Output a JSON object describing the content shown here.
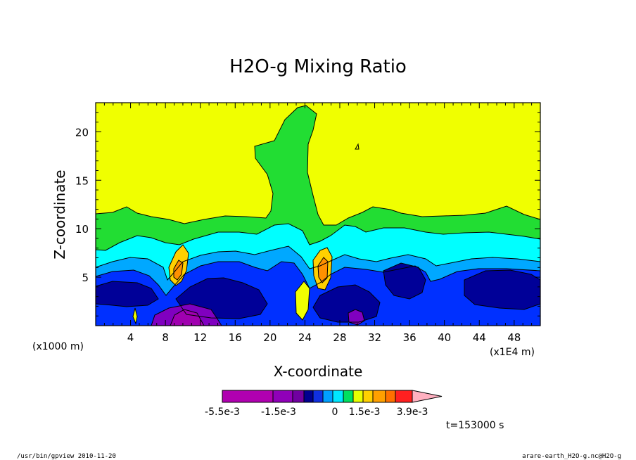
{
  "chart_data": {
    "type": "heatmap",
    "title": "H2O-g Mixing Ratio",
    "xlabel": "X-coordinate",
    "ylabel": "Z-coordinate",
    "x_unit_label": "(x1E4 m)",
    "y_unit_label": "(x1000 m)",
    "xlim": [
      0,
      51
    ],
    "ylim": [
      0,
      23
    ],
    "x_ticks": [
      "4",
      "8",
      "12",
      "16",
      "20",
      "24",
      "28",
      "32",
      "36",
      "40",
      "44",
      "48"
    ],
    "y_ticks": [
      "5",
      "10",
      "15",
      "20"
    ],
    "time_label": "t=153000 s",
    "colorbar": {
      "labels": [
        "-5.5e-3",
        "-1.5e-3",
        "0",
        "1.5e-3",
        "3.9e-3"
      ],
      "colors": [
        "#b000b0",
        "#9000b8",
        "#7000a0",
        "#000090",
        "#1030e0",
        "#00a0ff",
        "#00e8ff",
        "#00e060",
        "#e8ff00",
        "#ffd000",
        "#ffa000",
        "#ff7000",
        "#ff2020",
        "#ff7080",
        "#ffb0c0"
      ]
    },
    "field": {
      "background": "#f0ff00",
      "regions": [
        {
          "level": "0",
          "color": "#22dd33"
        },
        {
          "level": "-0.5e-3",
          "color": "#00ffff"
        },
        {
          "level": "-1.0e-3",
          "color": "#00a8ff"
        },
        {
          "level": "-1.5e-3",
          "color": "#0030ff"
        },
        {
          "level": "-2.0e-3",
          "color": "#000098"
        },
        {
          "level": "-3.0e-3",
          "color": "#8000c0"
        },
        {
          "level": "-4.0e-3",
          "color": "#a000b0"
        },
        {
          "level": "0.5e-3",
          "color": "#ffd000"
        },
        {
          "level": "1.5e-3",
          "color": "#ff9000"
        }
      ]
    }
  },
  "footer": {
    "left": "/usr/bin/gpview  2010-11-20",
    "right": "arare-earth_H2O-g.nc@H2O-g"
  }
}
